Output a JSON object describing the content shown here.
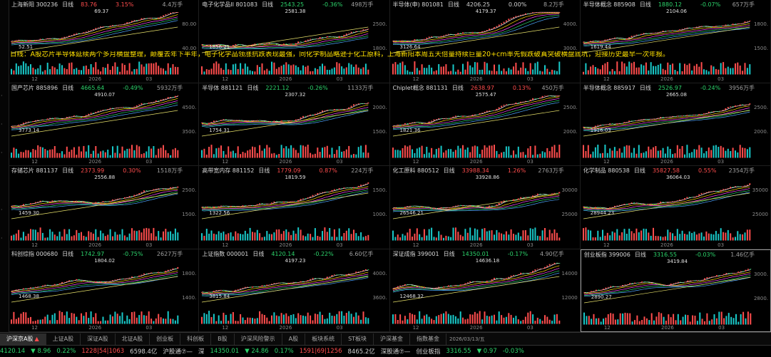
{
  "news_banner": "日线：A股芯片半导体延续两个多月横盘整理，颠覆去年下半年，电子化学品领涨抗跌表现最强，同化学制品略逊于化工原料，上海新阳本周五天倍量持续巨量20+cm率先假跌破真突破横盘底坑，迎接历史最早一次年报。",
  "panels": [
    {
      "name": "上海新阳 300236",
      "period": "日线",
      "price": "83.76",
      "change": "3.15%",
      "vol": "4.4万手",
      "dir": "up",
      "ymax": "80.00",
      "ymin": "40.00",
      "annotations": [
        "69.37",
        "52.51"
      ],
      "months": [
        "12",
        "2026",
        "03"
      ],
      "selected": false
    },
    {
      "name": "电子化学品II 801083",
      "period": "日线",
      "price": "2543.25",
      "change": "-0.36%",
      "vol": "498万手",
      "dir": "dn",
      "ymax": "2500.",
      "ymin": "1800.",
      "annotations": [
        "2581.38",
        "1856.21"
      ],
      "months": [
        "12",
        "2026",
        "03"
      ],
      "selected": false
    },
    {
      "name": "半导体(申) 801081",
      "period": "日线",
      "price": "4206.25",
      "change": "0.00%",
      "vol": "8.2万手",
      "dir": "flat",
      "ymax": "4000.",
      "ymin": "3000.",
      "annotations": [
        "4179.37",
        "3126.64"
      ],
      "months": [
        "12",
        "2026",
        "03"
      ],
      "selected": false
    },
    {
      "name": "半导体概念 885908",
      "period": "日线",
      "price": "1880.12",
      "change": "-0.07%",
      "vol": "657万手",
      "dir": "dn",
      "ymax": "1800.",
      "ymin": "1500.",
      "annotations": [
        "2104.06",
        "1619.44"
      ],
      "months": [
        "12",
        "2026",
        "03"
      ],
      "selected": false
    },
    {
      "name": "国产芯片 885896",
      "period": "日线",
      "price": "4665.64",
      "change": "-0.49%",
      "vol": "5932万手",
      "dir": "dn",
      "ymax": "4500.",
      "ymin": "3500.",
      "annotations": [
        "4910.07",
        "3773.14"
      ],
      "months": [
        "12",
        "2026",
        "03"
      ],
      "selected": false
    },
    {
      "name": "半导体 881121",
      "period": "日线",
      "price": "2221.12",
      "change": "-0.26%",
      "vol": "1133万手",
      "dir": "dn",
      "ymax": "2000.",
      "ymin": "1500.",
      "annotations": [
        "2307.32",
        "1754.31"
      ],
      "months": [
        "12",
        "2026",
        "03"
      ],
      "selected": false
    },
    {
      "name": "Chiplet概念 881131",
      "period": "日线",
      "price": "2638.97",
      "change": "0.13%",
      "vol": "450万手",
      "dir": "up",
      "ymax": "2500.",
      "ymin": "2000.",
      "annotations": [
        "2575.47",
        "1821.36"
      ],
      "months": [
        "12",
        "2026",
        "03"
      ],
      "selected": false
    },
    {
      "name": "半导体概念 885917",
      "period": "日线",
      "price": "2526.97",
      "change": "-0.24%",
      "vol": "3956万手",
      "dir": "dn",
      "ymax": "2500.",
      "ymin": "2000.",
      "annotations": [
        "2665.08",
        "1916.03"
      ],
      "months": [
        "12",
        "2026",
        "03"
      ],
      "selected": false
    },
    {
      "name": "存储芯片 881137",
      "period": "日线",
      "price": "2373.99",
      "change": "0.30%",
      "vol": "1518万手",
      "dir": "up",
      "ymax": "2500.",
      "ymin": "1500.",
      "annotations": [
        "2556.88",
        "1459.30"
      ],
      "months": [
        "12",
        "2026",
        "03"
      ],
      "selected": false
    },
    {
      "name": "高带宽内存 881152",
      "period": "日线",
      "price": "1779.09",
      "change": "0.87%",
      "vol": "224万手",
      "dir": "up",
      "ymax": "1500.",
      "ymin": "1000.",
      "annotations": [
        "1819.59",
        "1322.56"
      ],
      "months": [
        "12",
        "2026",
        "03"
      ],
      "selected": false
    },
    {
      "name": "化工原料 880512",
      "period": "日线",
      "price": "33988.34",
      "change": "1.26%",
      "vol": "2763万手",
      "dir": "up",
      "ymax": "30000",
      "ymin": "25000",
      "annotations": [
        "33928.86",
        "26546.21"
      ],
      "months": [
        "12",
        "2026",
        "03"
      ],
      "selected": false
    },
    {
      "name": "化学制品 880538",
      "period": "日线",
      "price": "35827.58",
      "change": "0.55%",
      "vol": "2354万手",
      "dir": "up",
      "ymax": "35000",
      "ymin": "25000",
      "annotations": [
        "36064.03",
        "28944.23"
      ],
      "months": [
        "12",
        "2026",
        "03"
      ],
      "selected": false
    },
    {
      "name": "科创综指 000680",
      "period": "日线",
      "price": "1742.97",
      "change": "-0.75%",
      "vol": "2627万手",
      "dir": "dn",
      "ymax": "1800.",
      "ymin": "1400.",
      "annotations": [
        "1804.02",
        "1468.38"
      ],
      "months": [
        "12",
        "2026",
        "03"
      ],
      "selected": false
    },
    {
      "name": "上证指数 000001",
      "period": "日线",
      "price": "4120.14",
      "change": "-0.22%",
      "vol": "6.60亿手",
      "dir": "dn",
      "ymax": "4000.",
      "ymin": "3600.",
      "annotations": [
        "4197.23",
        "3815.84"
      ],
      "months": [
        "12",
        "2026",
        "03"
      ],
      "selected": false
    },
    {
      "name": "深证成指 399001",
      "period": "日线",
      "price": "14350.01",
      "change": "-0.17%",
      "vol": "4.90亿手",
      "dir": "dn",
      "ymax": "14000",
      "ymin": "12000",
      "annotations": [
        "14636.18",
        "12468.32"
      ],
      "months": [
        "12",
        "2026",
        "03"
      ],
      "selected": false
    },
    {
      "name": "创业板指 399006",
      "period": "日线",
      "price": "3316.55",
      "change": "-0.03%",
      "vol": "1.46亿手",
      "dir": "dn",
      "ymax": "3000.",
      "ymin": "2800.",
      "annotations": [
        "3419.84",
        "2890.27"
      ],
      "months": [
        "12",
        "2026",
        "03"
      ],
      "selected": true
    }
  ],
  "tabs": [
    "沪深京A股",
    "上证A股",
    "深证A股",
    "北证A股",
    "创业板",
    "科创板",
    "B股",
    "沪深风险警示",
    "A股",
    "板块系统",
    "ST板块",
    "沪深基金",
    "指数基金"
  ],
  "active_tab": 0,
  "date_label": "2026/03/13/五",
  "status": {
    "sh_index": "4120.14",
    "sh_chg": "▼ 8.96",
    "sh_pct": "0.22%",
    "sh_ratio": "1228|54|1063",
    "sh_amt": "6598.4亿",
    "hk_label": "沪股通⑦—",
    "sz_label": "深",
    "sz_index": "14350.01",
    "sz_chg": "▼ 24.86",
    "sz_pct": "0.17%",
    "sz_ratio": "1591|69|1256",
    "sz_amt": "8465.2亿",
    "sg_label": "深股通⑦—",
    "cy_label": "创业板指",
    "cy_index": "3316.55",
    "cy_chg": "▼ 0.97",
    "cy_pct": "-0.03%"
  },
  "colors": {
    "up": "#ff4d4d",
    "down": "#2cd36b",
    "banner": "#ffe100"
  }
}
